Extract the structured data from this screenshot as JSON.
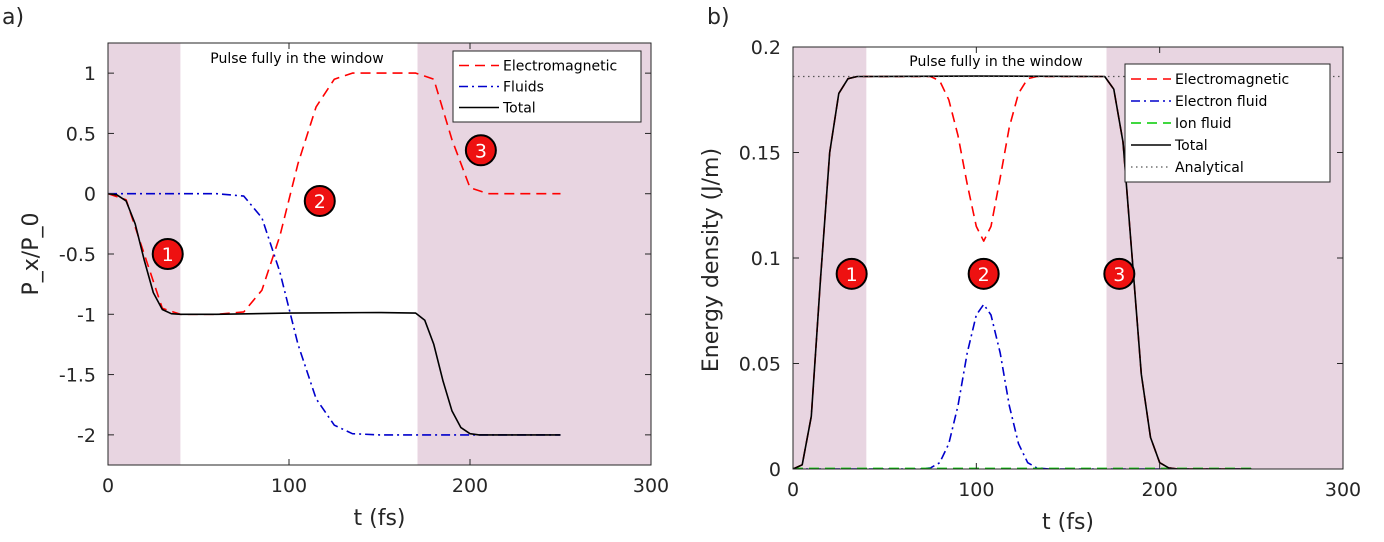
{
  "chart_data": [
    {
      "panel_label": "a)",
      "type": "line",
      "xlabel": "t (fs)",
      "ylabel": "P_x/P_0",
      "xlim": [
        0,
        300
      ],
      "ylim": [
        -2.25,
        1.25
      ],
      "x_ticks": [
        0,
        100,
        200,
        300
      ],
      "x_tick_labels": [
        "0",
        "100",
        "200",
        "300"
      ],
      "y_ticks": [
        1,
        0.5,
        0,
        -0.5,
        -1,
        -1.5,
        -2
      ],
      "y_tick_labels": [
        "1",
        "0.5",
        "0",
        "-0.5",
        "-1",
        "-1.5",
        "-2"
      ],
      "grid": false,
      "legend_position": "top-right",
      "shaded_regions": [
        {
          "x": [
            0,
            40
          ],
          "color": "#e8d5e1"
        },
        {
          "x": [
            171,
            300
          ],
          "color": "#e8d5e1"
        }
      ],
      "annotation": "Pulse fully in the window",
      "markers": [
        {
          "label": "1",
          "x": 33,
          "y": -0.5
        },
        {
          "label": "2",
          "x": 117,
          "y": -0.06
        },
        {
          "label": "3",
          "x": 206,
          "y": 0.36
        }
      ],
      "series": [
        {
          "name": "Electromagnetic",
          "color": "#ff0000",
          "style": "dashed",
          "x": [
            0,
            10,
            20,
            30,
            40,
            60,
            75,
            85,
            95,
            105,
            115,
            125,
            135,
            150,
            170,
            180,
            190,
            200,
            210,
            230,
            250
          ],
          "y": [
            0,
            -0.05,
            -0.5,
            -0.95,
            -1,
            -1,
            -0.98,
            -0.8,
            -0.35,
            0.25,
            0.72,
            0.95,
            1,
            1,
            1,
            0.95,
            0.45,
            0.05,
            0,
            0,
            0
          ]
        },
        {
          "name": "Fluids",
          "color": "#0000cc",
          "style": "dashdot",
          "x": [
            0,
            40,
            60,
            75,
            85,
            95,
            105,
            115,
            125,
            135,
            150,
            200,
            250
          ],
          "y": [
            0,
            0,
            0,
            -0.02,
            -0.2,
            -0.65,
            -1.25,
            -1.7,
            -1.92,
            -1.99,
            -2,
            -2,
            -2
          ]
        },
        {
          "name": "Total",
          "color": "#000000",
          "style": "solid",
          "x": [
            0,
            5,
            10,
            15,
            20,
            25,
            30,
            35,
            40,
            60,
            100,
            150,
            170,
            175,
            180,
            185,
            190,
            195,
            200,
            205,
            210,
            250
          ],
          "y": [
            0,
            -0.01,
            -0.06,
            -0.25,
            -0.55,
            -0.82,
            -0.96,
            -0.995,
            -1,
            -1,
            -0.99,
            -0.985,
            -0.99,
            -1.05,
            -1.25,
            -1.55,
            -1.8,
            -1.94,
            -1.99,
            -2,
            -2,
            -2
          ]
        }
      ]
    },
    {
      "panel_label": "b)",
      "type": "line",
      "xlabel": "t (fs)",
      "ylabel": "Energy density (J/m)",
      "xlim": [
        0,
        300
      ],
      "ylim": [
        0,
        0.2
      ],
      "x_ticks": [
        0,
        100,
        200,
        300
      ],
      "x_tick_labels": [
        "0",
        "100",
        "200",
        "300"
      ],
      "y_ticks": [
        0,
        0.05,
        0.1,
        0.15,
        0.2
      ],
      "y_tick_labels": [
        "0",
        "0.05",
        "0.1",
        "0.15",
        "0.2"
      ],
      "grid": false,
      "legend_position": "top-right",
      "shaded_regions": [
        {
          "x": [
            0,
            40
          ],
          "color": "#e8d5e1"
        },
        {
          "x": [
            171,
            300
          ],
          "color": "#e8d5e1"
        }
      ],
      "annotation": "Pulse fully in the window",
      "markers": [
        {
          "label": "1",
          "x": 32,
          "y": 0.0925
        },
        {
          "label": "2",
          "x": 104,
          "y": 0.0925
        },
        {
          "label": "3",
          "x": 178,
          "y": 0.0925
        }
      ],
      "series": [
        {
          "name": "Electromagnetic",
          "color": "#ff0000",
          "style": "dashed",
          "x": [
            0,
            5,
            10,
            15,
            20,
            25,
            30,
            35,
            40,
            60,
            75,
            80,
            85,
            90,
            95,
            100,
            104,
            108,
            113,
            118,
            123,
            128,
            133,
            150,
            170,
            175,
            180,
            185,
            190,
            195,
            200,
            205,
            210,
            230,
            250
          ],
          "y": [
            0,
            0.002,
            0.025,
            0.09,
            0.15,
            0.178,
            0.185,
            0.186,
            0.186,
            0.186,
            0.186,
            0.184,
            0.175,
            0.158,
            0.135,
            0.115,
            0.108,
            0.115,
            0.138,
            0.162,
            0.178,
            0.185,
            0.186,
            0.186,
            0.186,
            0.18,
            0.155,
            0.1,
            0.045,
            0.015,
            0.003,
            0.0005,
            0,
            0,
            0
          ]
        },
        {
          "name": "Electron fluid",
          "color": "#0000cc",
          "style": "dashdot",
          "x": [
            0,
            40,
            70,
            75,
            80,
            85,
            90,
            95,
            100,
            104,
            108,
            113,
            118,
            123,
            128,
            133,
            140,
            170,
            250
          ],
          "y": [
            0,
            0,
            0,
            0.0005,
            0.003,
            0.012,
            0.03,
            0.055,
            0.073,
            0.078,
            0.073,
            0.055,
            0.03,
            0.012,
            0.003,
            0.0005,
            0,
            0,
            0
          ]
        },
        {
          "name": "Ion fluid",
          "color": "#00cc00",
          "style": "dashed",
          "x": [
            0,
            250
          ],
          "y": [
            0.0003,
            0.0003
          ]
        },
        {
          "name": "Total",
          "color": "#000000",
          "style": "solid",
          "x": [
            0,
            5,
            10,
            15,
            20,
            25,
            30,
            35,
            40,
            100,
            170,
            175,
            180,
            185,
            190,
            195,
            200,
            205,
            210,
            230,
            250
          ],
          "y": [
            0,
            0.002,
            0.025,
            0.09,
            0.15,
            0.178,
            0.185,
            0.186,
            0.186,
            0.1862,
            0.186,
            0.18,
            0.155,
            0.1,
            0.045,
            0.015,
            0.003,
            0.0005,
            0,
            0,
            0
          ]
        },
        {
          "name": "Analytical",
          "color": "#555555",
          "style": "dotted",
          "x": [
            0,
            300
          ],
          "y": [
            0.186,
            0.186
          ]
        }
      ]
    }
  ]
}
